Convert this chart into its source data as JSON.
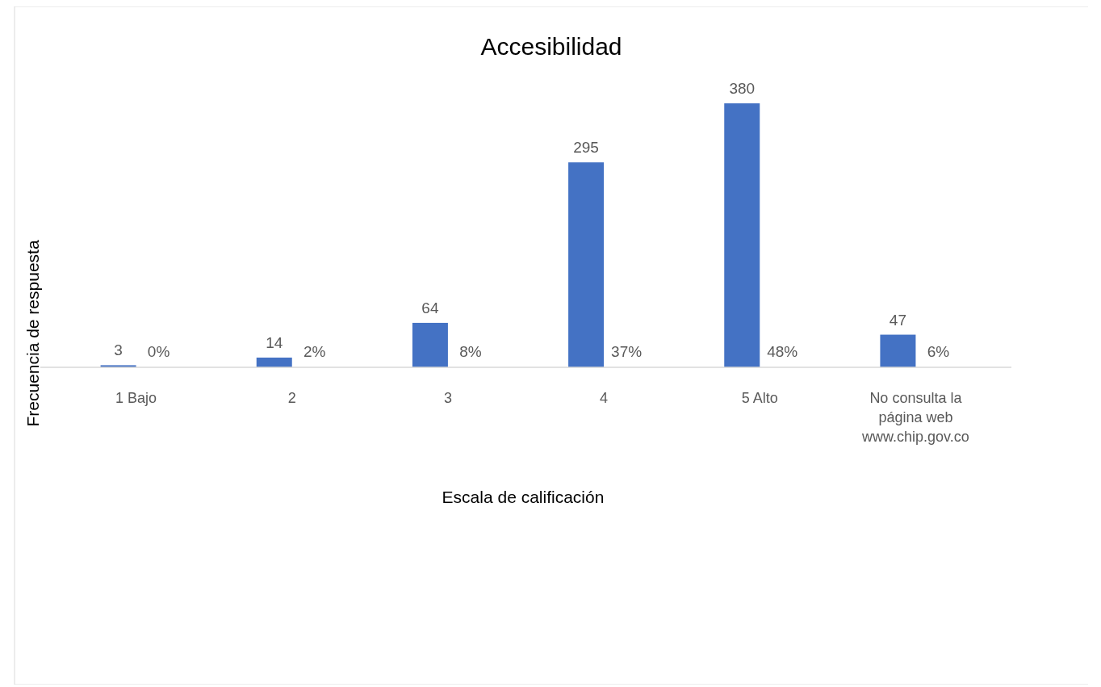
{
  "chart_data": {
    "type": "bar",
    "title": "Accesibilidad",
    "xlabel": "Escala de calificación",
    "ylabel": "Frecuencia de respuesta",
    "categories": [
      "1 Bajo",
      "2",
      "3",
      "4",
      "5 Alto",
      "No consulta la página web www.chip.gov.co"
    ],
    "values": [
      3,
      14,
      64,
      295,
      380,
      47
    ],
    "color": "#4472c4",
    "data_labels": true,
    "annotations": [
      {
        "text": "0%",
        "x": "1 Bajo",
        "y": 0
      },
      {
        "text": "2%",
        "x": "2",
        "y": 0
      },
      {
        "text": "8%",
        "x": "3",
        "y": 0
      },
      {
        "text": "37%",
        "x": "4",
        "y": 0
      },
      {
        "text": "48%",
        "x": "5 Alto",
        "y": 0
      },
      {
        "text": "6%",
        "x": "No consulta la página web www.chip.gov.co",
        "y": 0
      }
    ]
  }
}
